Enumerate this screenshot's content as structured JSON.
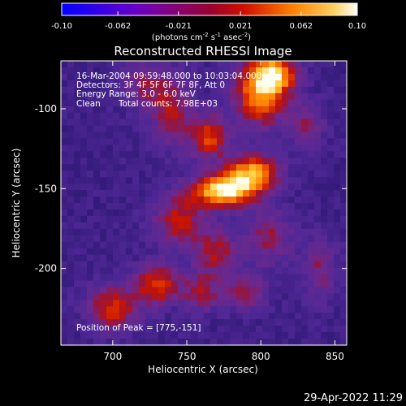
{
  "colorbar": {
    "tick_labels": [
      "-0.10",
      "-0.062",
      "-0.021",
      "0.021",
      "0.062",
      "0.10"
    ],
    "tick_values": [
      -0.1,
      -0.062,
      -0.021,
      0.021,
      0.062,
      0.1
    ],
    "range": [
      -0.1,
      0.1
    ],
    "units_prefix": "(photons cm",
    "units_exp1": "-2",
    "units_mid1": " s",
    "units_exp2": "-1",
    "units_mid2": " asec",
    "units_exp3": "-2",
    "units_suffix": ")"
  },
  "title": "Reconstructed RHESSI Image",
  "info": {
    "line1": "16-Mar-2004 09:59:48.000 to 10:03:04.000",
    "line2": "Detectors: 3F 4F 5F 6F 7F 8F, Att 0",
    "line3": "Energy Range: 3.0 - 6.0 keV",
    "line4_a": "Clean",
    "line4_b": "Total counts: 7.98E+03",
    "peak": "Position of Peak = [775,-151]"
  },
  "axes": {
    "xlabel": "Heliocentric X (arcsec)",
    "ylabel": "Heliocentric Y (arcsec)",
    "xticks": [
      700,
      750,
      800,
      850
    ],
    "yticks": [
      -100,
      -150,
      -200
    ],
    "xtick_labels": [
      "700",
      "750",
      "800",
      "850"
    ],
    "ytick_labels": [
      "-100",
      "-150",
      "-200"
    ]
  },
  "datestamp": "29-Apr-2022 11:29",
  "chart_data": {
    "type": "heatmap",
    "title": "Reconstructed RHESSI Image",
    "xlabel": "Heliocentric X (arcsec)",
    "ylabel": "Heliocentric Y (arcsec)",
    "xlim": [
      665,
      858
    ],
    "ylim": [
      -248,
      -70
    ],
    "colorscale_range": [
      -0.1,
      0.1
    ],
    "peak_position": [
      775,
      -151
    ],
    "blobs": [
      {
        "x": 775,
        "y": -151,
        "sx": 14,
        "sy": 7,
        "a": 1.0
      },
      {
        "x": 795,
        "y": -140,
        "sx": 12,
        "sy": 8,
        "a": 0.75
      },
      {
        "x": 765,
        "y": -118,
        "sx": 9,
        "sy": 10,
        "a": 0.55
      },
      {
        "x": 800,
        "y": -90,
        "sx": 12,
        "sy": 14,
        "a": 0.75
      },
      {
        "x": 810,
        "y": -78,
        "sx": 10,
        "sy": 8,
        "a": 0.65
      },
      {
        "x": 740,
        "y": -100,
        "sx": 10,
        "sy": 16,
        "a": 0.4
      },
      {
        "x": 745,
        "y": -170,
        "sx": 12,
        "sy": 12,
        "a": 0.45
      },
      {
        "x": 770,
        "y": -190,
        "sx": 10,
        "sy": 10,
        "a": 0.4
      },
      {
        "x": 805,
        "y": -180,
        "sx": 11,
        "sy": 12,
        "a": 0.35
      },
      {
        "x": 730,
        "y": -210,
        "sx": 11,
        "sy": 9,
        "a": 0.55
      },
      {
        "x": 700,
        "y": -225,
        "sx": 12,
        "sy": 10,
        "a": 0.5
      },
      {
        "x": 760,
        "y": -215,
        "sx": 9,
        "sy": 8,
        "a": 0.4
      },
      {
        "x": 790,
        "y": -215,
        "sx": 10,
        "sy": 8,
        "a": 0.35
      },
      {
        "x": 840,
        "y": -200,
        "sx": 8,
        "sy": 14,
        "a": 0.3
      },
      {
        "x": 720,
        "y": -85,
        "sx": 10,
        "sy": 10,
        "a": 0.3
      },
      {
        "x": 830,
        "y": -110,
        "sx": 9,
        "sy": 10,
        "a": 0.3
      }
    ]
  }
}
